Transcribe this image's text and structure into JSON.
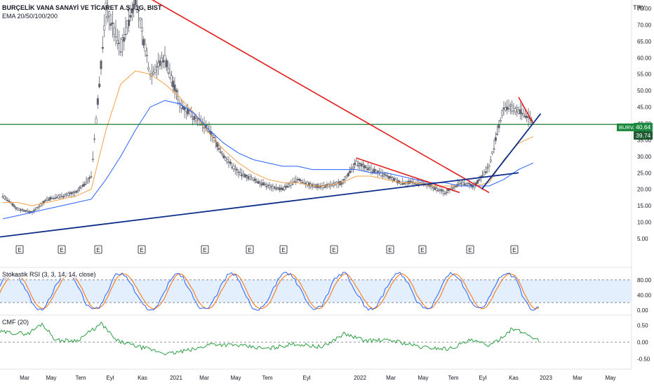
{
  "header": {
    "title": "BURÇELİK VANA SANAYİ VE TİCARET A.Ş., 1G, BIST",
    "indicator_label": "EMA 20/50/100/200",
    "currency": "TRY"
  },
  "colors": {
    "price_candles": "#555555",
    "ema20": "#e91e1e",
    "ema50": "#f5a04a",
    "ema100": "#2962ff",
    "trend_red": "#e31b1b",
    "trend_blue": "#0c2d8a",
    "horizontal_green": "#1b7a2e",
    "stoch_k": "#2962ff",
    "stoch_d": "#ff6d00",
    "stoch_band": "#e3effd",
    "cmf_line": "#2e9e44",
    "tag_green": "#1b8a3e",
    "tag_dark": "#1e5a32"
  },
  "price_pane": {
    "y_ticks": [
      "75.00",
      "70.00",
      "65.00",
      "60.00",
      "55.00",
      "50.00",
      "45.00",
      "40.00",
      "35.00",
      "30.00",
      "25.00",
      "20.00",
      "15.00",
      "10.00",
      "5.00"
    ],
    "symbol_tag": "BURVA",
    "last_price": "40.64",
    "level_price": "39.74",
    "earnings_marker": "E"
  },
  "stoch_pane": {
    "label": "Stokastik RSI (3, 3, 14, 14, close)",
    "y_ticks": [
      "80.00",
      "40.00",
      "0.00"
    ]
  },
  "cmf_pane": {
    "label": "CMF (20)",
    "y_ticks": [
      "0.50",
      "0.00",
      "-0.50"
    ]
  },
  "x_axis": {
    "labels": [
      "Mar",
      "May",
      "Tem",
      "Eyl",
      "Kas",
      "2021",
      "Mar",
      "May",
      "Tem",
      "Eyl",
      "2022",
      "Mar",
      "May",
      "Tem",
      "Eyl",
      "Kas",
      "2023",
      "Mar",
      "May"
    ]
  },
  "chart_data": {
    "type": "line",
    "title": "BURÇELİK VANA SANAYİ VE TİCARET A.Ş., 1G, BIST",
    "xlabel": "",
    "ylabel": "TRY",
    "ylim": [
      4,
      78
    ],
    "series": [
      {
        "name": "BURVA",
        "x": [
          "2020-02",
          "2020-03",
          "2020-04",
          "2020-05",
          "2020-06",
          "2020-07",
          "2020-07b",
          "2020-08",
          "2020-09",
          "2020-10",
          "2020-11",
          "2020-12",
          "2021-01",
          "2021-02",
          "2021-03",
          "2021-04",
          "2021-05",
          "2021-06",
          "2021-07",
          "2021-08",
          "2021-09",
          "2021-10",
          "2021-11",
          "2021-12",
          "2022-01",
          "2022-02",
          "2022-03",
          "2022-04",
          "2022-05",
          "2022-06",
          "2022-07",
          "2022-08",
          "2022-09",
          "2022-10",
          "2022-11",
          "2022-11b",
          "2022-12"
        ],
        "values": [
          18,
          14,
          13,
          17,
          18,
          19,
          24,
          75,
          63,
          78,
          55,
          60,
          46,
          42,
          38,
          30,
          25,
          23,
          21,
          20,
          23,
          21,
          21,
          22,
          28,
          26,
          24,
          22,
          22,
          21,
          19,
          22,
          21,
          27,
          45,
          44,
          40.64
        ]
      },
      {
        "name": "EMA 20",
        "values": [
          17,
          15,
          14,
          16,
          18,
          19,
          22,
          58,
          60,
          68,
          58,
          58,
          48,
          42,
          38,
          31,
          26,
          24,
          22,
          21,
          22,
          21,
          21,
          22,
          26,
          25,
          24,
          22,
          22,
          21,
          20,
          21,
          21,
          25,
          41,
          43,
          41
        ]
      },
      {
        "name": "EMA 50",
        "values": [
          16,
          16,
          15,
          16,
          17,
          18,
          20,
          38,
          52,
          56,
          55,
          52,
          48,
          43,
          37,
          32,
          28,
          25,
          23,
          22,
          22,
          21,
          21,
          22,
          24,
          24,
          23,
          22,
          22,
          21,
          21,
          21,
          21,
          22,
          29,
          34,
          36
        ]
      },
      {
        "name": "EMA 100",
        "values": [
          11,
          12,
          13,
          14,
          15,
          16,
          17,
          23,
          30,
          38,
          45,
          47,
          46,
          43,
          38,
          34,
          31,
          29,
          28,
          27,
          27,
          26,
          26,
          26,
          26,
          25,
          25,
          24,
          23,
          22,
          22,
          21,
          21,
          21,
          23,
          26,
          28
        ]
      }
    ],
    "levels": [
      39.74
    ],
    "stoch_rsi": {
      "ylim": [
        0,
        100
      ],
      "bands": [
        20,
        80
      ]
    },
    "cmf": {
      "ylim": [
        -0.7,
        0.7
      ]
    }
  }
}
